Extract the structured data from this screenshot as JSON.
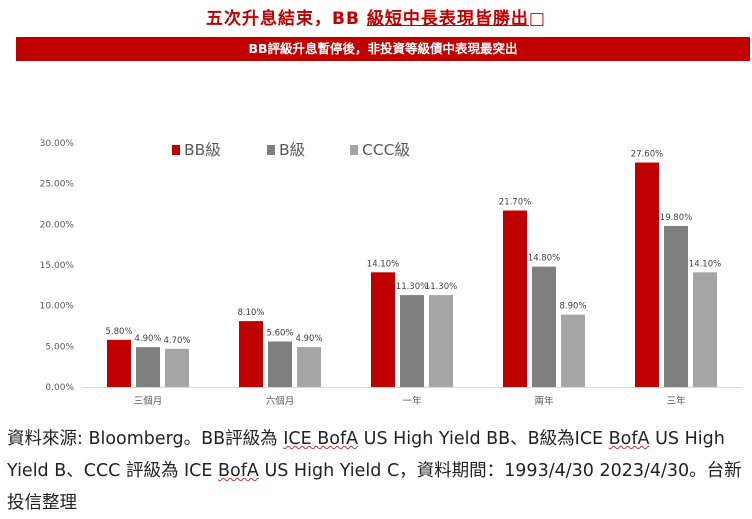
{
  "title": {
    "prefix": "五次升息結束，BB ",
    "underlined": "級短中長表現皆勝出",
    "suffix": "□"
  },
  "banner": "BB評級升息暫停後，非投資等級債中表現最突出",
  "chart_data": {
    "type": "bar",
    "categories": [
      "三個月",
      "六個月",
      "一年",
      "兩年",
      "三年"
    ],
    "series": [
      {
        "name": "BB級",
        "values": [
          5.8,
          8.1,
          14.1,
          21.7,
          27.6
        ],
        "labels": [
          "5.80%",
          "8.10%",
          "14.10%",
          "21.70%",
          "27.60%"
        ],
        "color": "#c00000"
      },
      {
        "name": "B級",
        "values": [
          4.9,
          5.6,
          11.3,
          14.8,
          19.8
        ],
        "labels": [
          "4.90%",
          "5.60%",
          "11.30%",
          "14.80%",
          "19.80%"
        ],
        "color": "#7f7f7f"
      },
      {
        "name": "CCC級",
        "values": [
          4.7,
          4.9,
          11.3,
          8.9,
          14.1
        ],
        "labels": [
          "4.70%",
          "4.90%",
          "11.30%",
          "8.90%",
          "14.10%"
        ],
        "color": "#a5a5a5"
      }
    ],
    "yticks": [
      "0.00%",
      "5.00%",
      "10.00%",
      "15.00%",
      "20.00%",
      "25.00%",
      "30.00%"
    ],
    "ylim": [
      0,
      30
    ],
    "grid": false,
    "legend": "top-left"
  },
  "source": {
    "part1": "資料來源: Bloomberg。BB評級為 ",
    "ice1": "ICE BofA",
    "part2": " US High Yield BB、B級為ICE ",
    "bofa2": "BofA",
    "part3": " US High Yield B、CCC 評級為 ICE ",
    "bofa3": "BofA",
    "part4": " US High Yield C，資料期間：1993/4/30 2023/4/30。台新投信整理"
  }
}
